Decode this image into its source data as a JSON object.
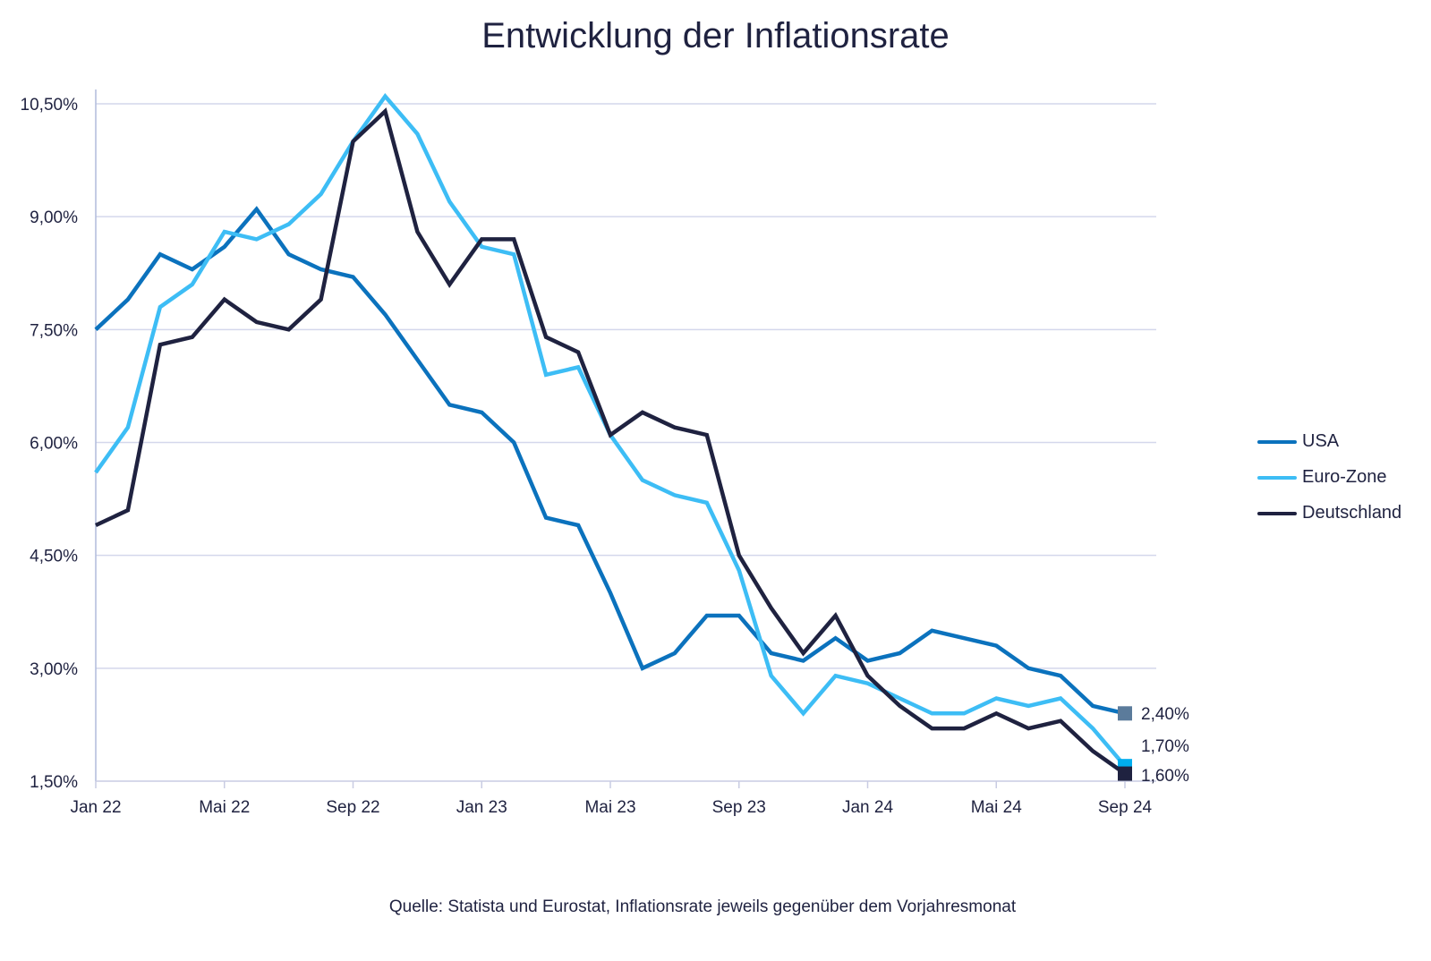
{
  "chart_data": {
    "type": "line",
    "title": "Entwicklung der Inflationsrate",
    "xlabel": "",
    "ylabel": "",
    "x": [
      "Jan 22",
      "Feb 22",
      "Mär 22",
      "Apr 22",
      "Mai 22",
      "Jun 22",
      "Jul 22",
      "Aug 22",
      "Sep 22",
      "Okt 22",
      "Nov 22",
      "Dez 22",
      "Jan 23",
      "Feb 23",
      "Mär 23",
      "Apr 23",
      "Mai 23",
      "Jun 23",
      "Jul 23",
      "Aug 23",
      "Sep 23",
      "Okt 23",
      "Nov 23",
      "Dez 23",
      "Jan 24",
      "Feb 24",
      "Mär 24",
      "Apr 24",
      "Mai 24",
      "Jun 24",
      "Jul 24",
      "Aug 24",
      "Sep 24"
    ],
    "xticks": [
      "Jan 22",
      "Mai 22",
      "Sep 22",
      "Jan 23",
      "Mai 23",
      "Sep 23",
      "Jan 24",
      "Mai 24",
      "Sep 24"
    ],
    "yticks": [
      "1,50%",
      "3,00%",
      "4,50%",
      "6,00%",
      "7,50%",
      "9,00%",
      "10,50%"
    ],
    "ylim": [
      1.5,
      10.5
    ],
    "grid": true,
    "legend_position": "right",
    "series": [
      {
        "name": "USA",
        "color": "#0b72bd",
        "marker_color": "#5b7b9b",
        "end_label": "2,40%",
        "values": [
          7.5,
          7.9,
          8.5,
          8.3,
          8.6,
          9.1,
          8.5,
          8.3,
          8.2,
          7.7,
          7.1,
          6.5,
          6.4,
          6.0,
          5.0,
          4.9,
          4.0,
          3.0,
          3.2,
          3.7,
          3.7,
          3.2,
          3.1,
          3.4,
          3.1,
          3.2,
          3.5,
          3.4,
          3.3,
          3.0,
          2.9,
          2.5,
          2.4
        ]
      },
      {
        "name": "Euro-Zone",
        "color": "#3dbdf5",
        "marker_color": "#00aeef",
        "end_label": "1,70%",
        "values": [
          5.6,
          6.2,
          7.8,
          8.1,
          8.8,
          8.7,
          8.9,
          9.3,
          10.0,
          10.6,
          10.1,
          9.2,
          8.6,
          8.5,
          6.9,
          7.0,
          6.1,
          5.5,
          5.3,
          5.2,
          4.3,
          2.9,
          2.4,
          2.9,
          2.8,
          2.6,
          2.4,
          2.4,
          2.6,
          2.5,
          2.6,
          2.2,
          1.7
        ]
      },
      {
        "name": "Deutschland",
        "color": "#1f2240",
        "marker_color": "#1f2240",
        "end_label": "1,60%",
        "values": [
          4.9,
          5.1,
          7.3,
          7.4,
          7.9,
          7.6,
          7.5,
          7.9,
          10.0,
          10.4,
          8.8,
          8.1,
          8.7,
          8.7,
          7.4,
          7.2,
          6.1,
          6.4,
          6.2,
          6.1,
          4.5,
          3.8,
          3.2,
          3.7,
          2.9,
          2.5,
          2.2,
          2.2,
          2.4,
          2.2,
          2.3,
          1.9,
          1.6
        ]
      }
    ],
    "source": "Quelle: Statista und Eurostat, Inflationsrate jeweils gegenüber dem Vorjahresmonat"
  }
}
